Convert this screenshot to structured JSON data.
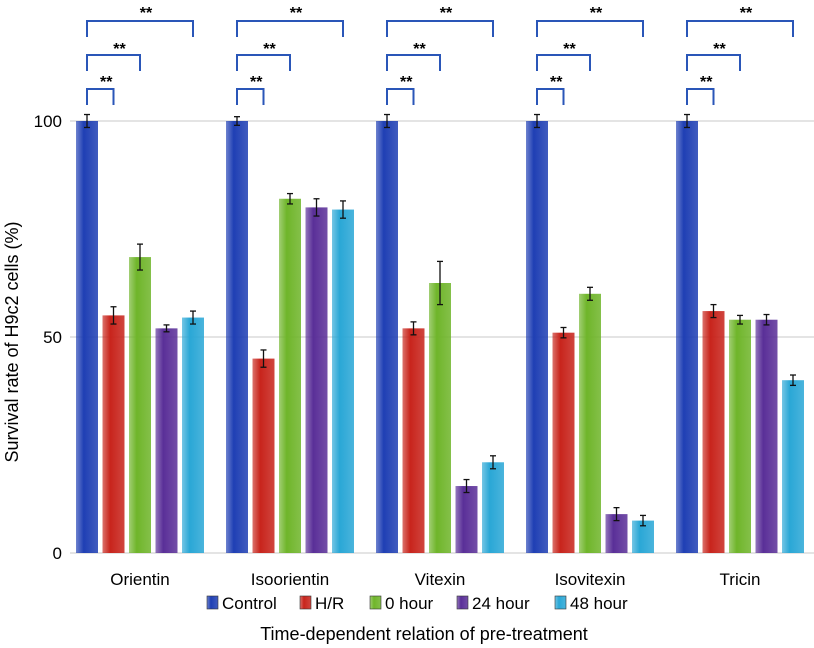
{
  "chart_data": {
    "type": "bar",
    "title": "",
    "xlabel": "Time-dependent relation of pre-treatment",
    "ylabel": "Survival rate of H9c2 cells (%)",
    "ylim": [
      0,
      100
    ],
    "yticks": [
      0,
      50,
      100
    ],
    "grid": true,
    "legend_position": "bottom",
    "categories": [
      "Orientin",
      "Isoorientin",
      "Vitexin",
      "Isovitexin",
      "Tricin"
    ],
    "series": [
      {
        "name": "Control",
        "color": "#1f3fb4",
        "values": [
          100,
          100,
          100,
          100,
          100
        ],
        "errors": [
          1.5,
          1.0,
          1.5,
          1.5,
          1.5
        ]
      },
      {
        "name": "H/R",
        "color": "#c8241c",
        "values": [
          55,
          45,
          52,
          51,
          56
        ],
        "errors": [
          2.0,
          2.0,
          1.5,
          1.2,
          1.5
        ]
      },
      {
        "name": "0 hour",
        "color": "#6fb52a",
        "values": [
          68.5,
          82,
          62.5,
          60,
          54
        ],
        "errors": [
          3.0,
          1.2,
          5.0,
          1.5,
          1.0
        ]
      },
      {
        "name": "24 hour",
        "color": "#5a2f98",
        "values": [
          52,
          80,
          15.5,
          9,
          54
        ],
        "errors": [
          0.8,
          2.0,
          1.5,
          1.5,
          1.2
        ]
      },
      {
        "name": "48 hour",
        "color": "#2aa7d6",
        "values": [
          54.5,
          79.5,
          21,
          7.5,
          40
        ],
        "errors": [
          1.5,
          2.0,
          1.5,
          1.2,
          1.2
        ]
      }
    ],
    "significance_brackets": [
      {
        "from_series": "Control",
        "to_series": "H/R",
        "label": "**"
      },
      {
        "from_series": "Control",
        "to_series": "0 hour",
        "label": "**"
      },
      {
        "from_series": "Control",
        "to_series": "48 hour",
        "label": "**"
      }
    ]
  }
}
